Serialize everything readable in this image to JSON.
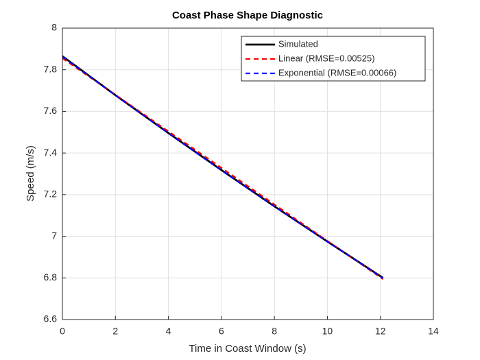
{
  "chart_data": {
    "type": "line",
    "title": "Coast Phase Shape Diagnostic",
    "xlabel": "Time in Coast Window (s)",
    "ylabel": "Speed (m/s)",
    "x": [
      0,
      2,
      4,
      6,
      8,
      10,
      12.1
    ],
    "series": [
      {
        "name": "Simulated",
        "color": "#000000",
        "style": "solid",
        "values": [
          7.865,
          7.678,
          7.496,
          7.318,
          7.144,
          6.975,
          6.8
        ]
      },
      {
        "name": "Linear (RMSE=0.00525)",
        "color": "#ff0000",
        "style": "dashed",
        "values": [
          7.855,
          7.68,
          7.504,
          7.329,
          7.153,
          6.978,
          6.794
        ]
      },
      {
        "name": "Exponential (RMSE=0.00066)",
        "color": "#0000ff",
        "style": "dashed",
        "values": [
          7.863,
          7.677,
          7.495,
          7.317,
          7.143,
          6.974,
          6.799
        ]
      }
    ],
    "xlim": [
      0,
      14
    ],
    "xticks": [
      0,
      2,
      4,
      6,
      8,
      10,
      12,
      14
    ],
    "ylim": [
      6.6,
      8
    ],
    "yticks": [
      6.6,
      6.8,
      7,
      7.2,
      7.4,
      7.6,
      7.8,
      8
    ],
    "grid": true,
    "legend": "northeast"
  }
}
